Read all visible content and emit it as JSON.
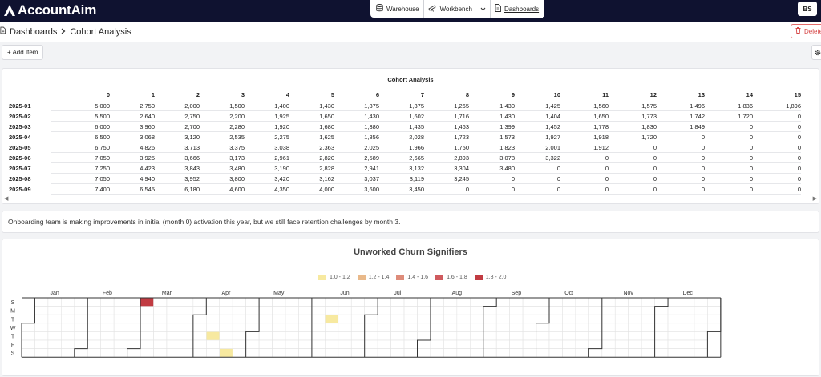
{
  "app": {
    "name": "AccountAim"
  },
  "nav": {
    "warehouse": "Warehouse",
    "workbench": "Workbench",
    "dashboards": "Dashboards"
  },
  "user": {
    "initials": "BS"
  },
  "breadcrumb": {
    "root": "Dashboards",
    "page": "Cohort Analysis"
  },
  "actions": {
    "delete": "Delete",
    "add_item": "+ Add Item"
  },
  "cohort": {
    "title": "Cohort Analysis",
    "columns": [
      "0",
      "1",
      "2",
      "3",
      "4",
      "5",
      "6",
      "7",
      "8",
      "9",
      "10",
      "11",
      "12",
      "13",
      "14",
      "15"
    ],
    "rows": [
      {
        "label": "2025-01",
        "values": [
          "5,000",
          "2,750",
          "2,000",
          "1,500",
          "1,400",
          "1,430",
          "1,375",
          "1,375",
          "1,265",
          "1,430",
          "1,425",
          "1,560",
          "1,575",
          "1,496",
          "1,836",
          "1,896"
        ]
      },
      {
        "label": "2025-02",
        "values": [
          "5,500",
          "2,640",
          "2,750",
          "2,200",
          "1,925",
          "1,650",
          "1,430",
          "1,602",
          "1,716",
          "1,430",
          "1,404",
          "1,650",
          "1,773",
          "1,742",
          "1,720",
          "0"
        ]
      },
      {
        "label": "2025-03",
        "values": [
          "6,000",
          "3,960",
          "2,700",
          "2,280",
          "1,920",
          "1,680",
          "1,380",
          "1,435",
          "1,463",
          "1,399",
          "1,452",
          "1,778",
          "1,830",
          "1,849",
          "0",
          "0"
        ]
      },
      {
        "label": "2025-04",
        "values": [
          "6,500",
          "3,068",
          "3,120",
          "2,535",
          "2,275",
          "1,625",
          "1,856",
          "2,028",
          "1,723",
          "1,573",
          "1,927",
          "1,918",
          "1,720",
          "0",
          "0",
          "0"
        ]
      },
      {
        "label": "2025-05",
        "values": [
          "6,750",
          "4,826",
          "3,713",
          "3,375",
          "3,038",
          "2,363",
          "2,025",
          "1,966",
          "1,750",
          "1,823",
          "2,001",
          "1,912",
          "0",
          "0",
          "0",
          "0"
        ]
      },
      {
        "label": "2025-06",
        "values": [
          "7,050",
          "3,925",
          "3,666",
          "3,173",
          "2,961",
          "2,820",
          "2,589",
          "2,665",
          "2,893",
          "3,078",
          "3,322",
          "0",
          "0",
          "0",
          "0",
          "0"
        ]
      },
      {
        "label": "2025-07",
        "values": [
          "7,250",
          "4,423",
          "3,843",
          "3,480",
          "3,190",
          "2,828",
          "2,941",
          "3,132",
          "3,304",
          "3,480",
          "0",
          "0",
          "0",
          "0",
          "0",
          "0"
        ]
      },
      {
        "label": "2025-08",
        "values": [
          "7,050",
          "4,940",
          "3,952",
          "3,800",
          "3,420",
          "3,162",
          "3,037",
          "3,119",
          "3,245",
          "0",
          "0",
          "0",
          "0",
          "0",
          "0",
          "0"
        ]
      },
      {
        "label": "2025-09",
        "values": [
          "7,400",
          "6,545",
          "6,180",
          "4,600",
          "4,350",
          "4,000",
          "3,600",
          "3,450",
          "0",
          "0",
          "0",
          "0",
          "0",
          "0",
          "0",
          "0"
        ]
      }
    ]
  },
  "note": {
    "text": "Onboarding team is making improvements in initial (month 0) activation this year, but we still face retention challenges by month 3."
  },
  "chart_data": {
    "type": "heatmap",
    "title": "Unworked Churn Signifiers",
    "legend": [
      {
        "label": "1.0 - 1.2",
        "color": "#f7e9a0"
      },
      {
        "label": "1.2 - 1.4",
        "color": "#e9b98a"
      },
      {
        "label": "1.4 - 1.6",
        "color": "#de8c7a"
      },
      {
        "label": "1.6 - 1.8",
        "color": "#cf5a5e"
      },
      {
        "label": "1.8 - 2.0",
        "color": "#c13b42"
      }
    ],
    "months": [
      "Jan",
      "Feb",
      "Mar",
      "Apr",
      "May",
      "Jun",
      "Jul",
      "Aug",
      "Sep",
      "Oct",
      "Nov",
      "Dec"
    ],
    "weekdays": [
      "S",
      "M",
      "T",
      "W",
      "T",
      "F",
      "S"
    ],
    "year_start_weekday": 3,
    "cells": [
      {
        "week": 9,
        "day": 0,
        "bin": 4
      },
      {
        "week": 14,
        "day": 4,
        "bin": 0
      },
      {
        "week": 15,
        "day": 6,
        "bin": 0
      },
      {
        "week": 23,
        "day": 2,
        "bin": 0
      }
    ]
  }
}
